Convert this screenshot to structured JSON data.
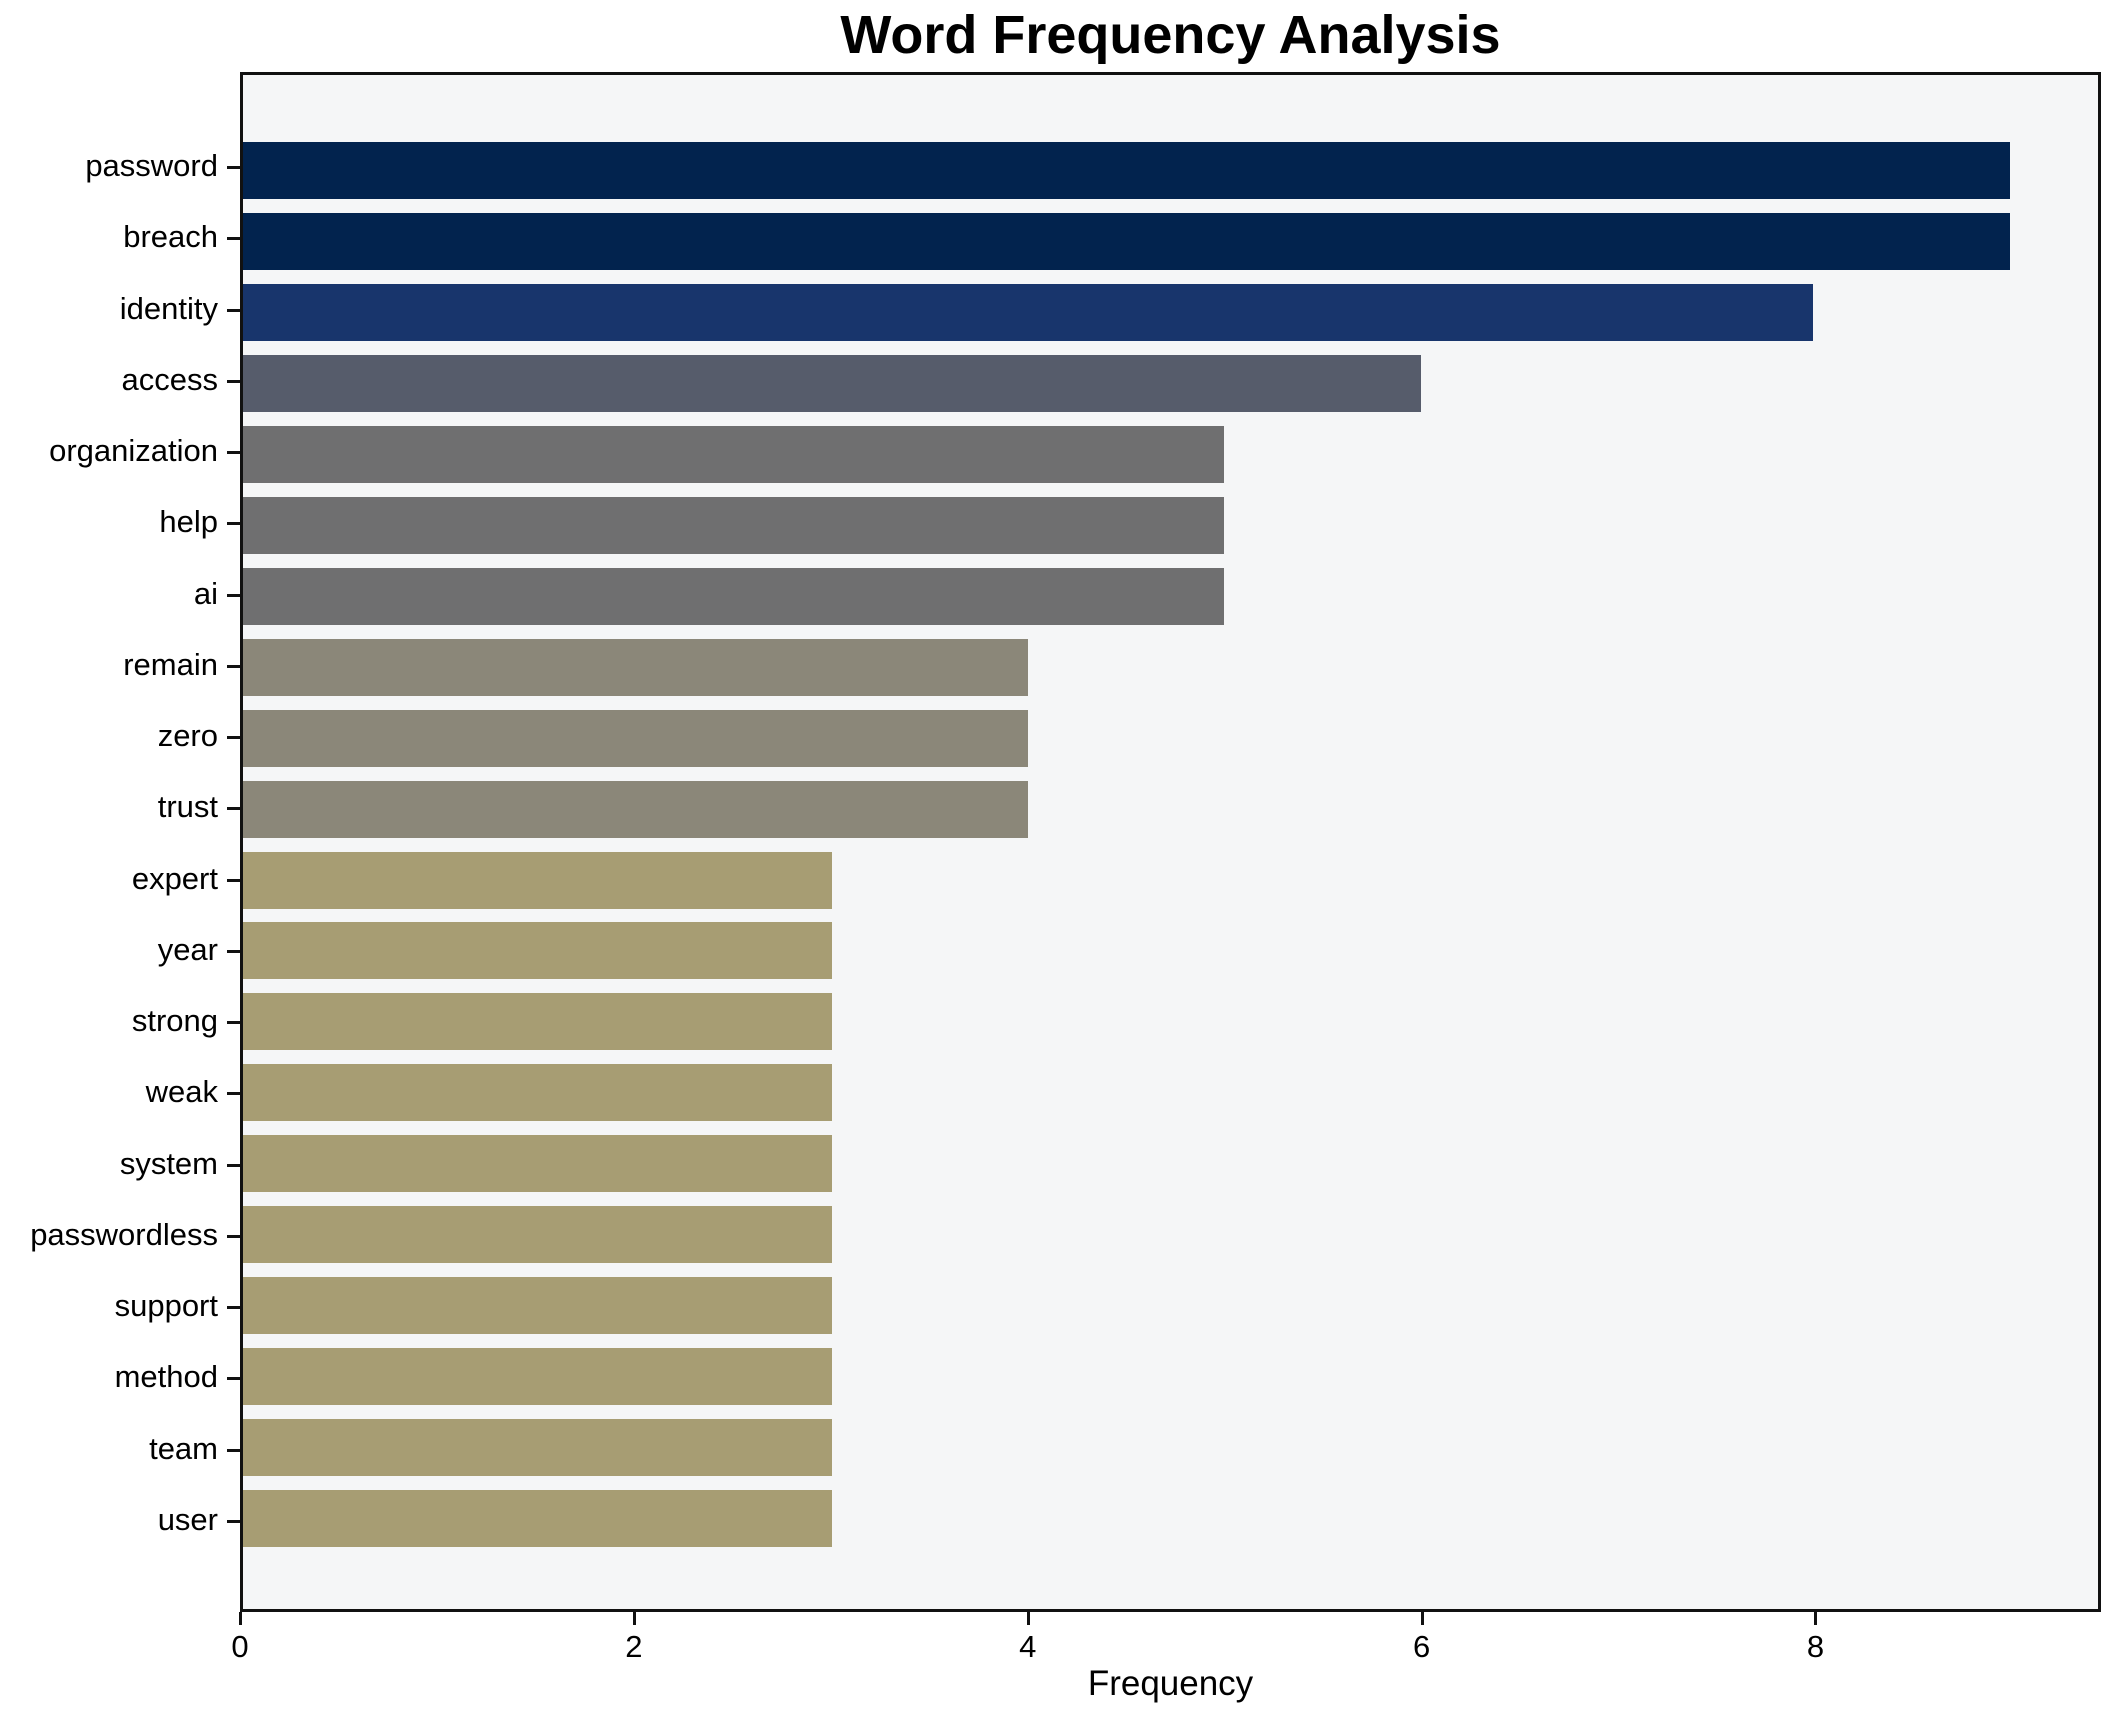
{
  "title": "Word Frequency Analysis",
  "xlabel": "Frequency",
  "chart_data": {
    "type": "bar",
    "orientation": "horizontal",
    "title": "Word Frequency Analysis",
    "xlabel": "Frequency",
    "ylabel": "",
    "grid": false,
    "legend": "none",
    "plot_background": "#f5f6f7",
    "xlim": [
      0,
      9.45
    ],
    "xticks": [
      0,
      2,
      4,
      6,
      8
    ],
    "categories": [
      "password",
      "breach",
      "identity",
      "access",
      "organization",
      "help",
      "ai",
      "remain",
      "zero",
      "trust",
      "expert",
      "year",
      "strong",
      "weak",
      "system",
      "passwordless",
      "support",
      "method",
      "team",
      "user"
    ],
    "values": [
      9,
      9,
      8,
      6,
      5,
      5,
      5,
      4,
      4,
      4,
      3,
      3,
      3,
      3,
      3,
      3,
      3,
      3,
      3,
      3
    ],
    "bar_colors": [
      "#02234e",
      "#02234e",
      "#18356c",
      "#565c6b",
      "#6f6f70",
      "#6f6f70",
      "#6f6f70",
      "#8b8779",
      "#8b8779",
      "#8b8779",
      "#a79d73",
      "#a79d73",
      "#a79d73",
      "#a79d73",
      "#a79d73",
      "#a79d73",
      "#a79d73",
      "#a79d73",
      "#a79d73",
      "#a79d73"
    ]
  }
}
